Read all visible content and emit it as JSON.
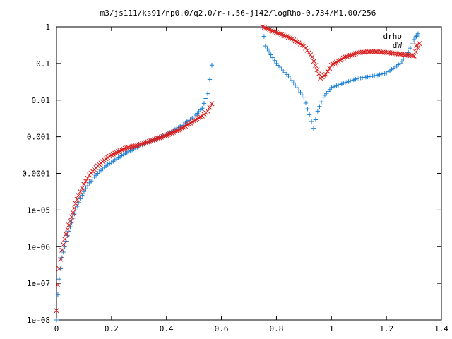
{
  "chart_data": {
    "type": "scatter",
    "title": "m3/js111/ks91/np0.0/q2.0/r-+.56-j142/logRho-0.734/M1.00/256",
    "xlim": [
      0,
      1.4
    ],
    "ylim": [
      1e-08,
      1
    ],
    "yscale": "log",
    "grid": false,
    "legend_position": "top-right",
    "x_ticks": [
      "0",
      "0.2",
      "0.4",
      "0.6",
      "0.8",
      "1",
      "1.2",
      "1.4"
    ],
    "x_tick_values": [
      0,
      0.2,
      0.4,
      0.6,
      0.8,
      1.0,
      1.2,
      1.4
    ],
    "y_ticks": [
      "1e-08",
      "1e-07",
      "1e-06",
      "1e-05",
      "0.0001",
      "0.001",
      "0.01",
      "0.1",
      "1"
    ],
    "y_tick_values": [
      1e-08,
      1e-07,
      1e-06,
      1e-05,
      0.0001,
      0.001,
      0.01,
      0.1,
      1
    ],
    "series": [
      {
        "name": "drho",
        "marker": "plus",
        "color": "#1a7fd4",
        "segments": [
          [
            [
              0.0,
              1e-08
            ],
            [
              0.005,
              5e-08
            ],
            [
              0.01,
              1.3e-07
            ],
            [
              0.015,
              2.5e-07
            ],
            [
              0.02,
              5e-07
            ],
            [
              0.03,
              1e-06
            ],
            [
              0.04,
              2e-06
            ],
            [
              0.05,
              3.5e-06
            ],
            [
              0.06,
              6e-06
            ],
            [
              0.07,
              1e-05
            ],
            [
              0.08,
              1.6e-05
            ],
            [
              0.1,
              3.2e-05
            ],
            [
              0.12,
              5.5e-05
            ],
            [
              0.15,
              0.0001
            ],
            [
              0.18,
              0.00016
            ],
            [
              0.2,
              0.0002
            ],
            [
              0.25,
              0.00035
            ],
            [
              0.3,
              0.00055
            ],
            [
              0.35,
              0.0008
            ],
            [
              0.4,
              0.00115
            ],
            [
              0.45,
              0.0019
            ],
            [
              0.5,
              0.0035
            ],
            [
              0.53,
              0.006
            ],
            [
              0.55,
              0.015
            ],
            [
              0.565,
              0.09
            ]
          ],
          [
            [
              0.75,
              1.0
            ],
            [
              0.76,
              0.3
            ],
            [
              0.8,
              0.1
            ],
            [
              0.85,
              0.04
            ],
            [
              0.9,
              0.012
            ],
            [
              0.92,
              0.004
            ],
            [
              0.935,
              0.0017
            ],
            [
              0.95,
              0.005
            ],
            [
              0.97,
              0.012
            ],
            [
              1.0,
              0.022
            ],
            [
              1.05,
              0.03
            ],
            [
              1.1,
              0.04
            ],
            [
              1.15,
              0.045
            ],
            [
              1.2,
              0.055
            ],
            [
              1.25,
              0.1
            ],
            [
              1.28,
              0.2
            ],
            [
              1.3,
              0.45
            ],
            [
              1.315,
              0.65
            ]
          ]
        ]
      },
      {
        "name": "dW",
        "marker": "cross",
        "color": "#d81b1b",
        "segments": [
          [
            [
              0.0,
              1.8e-08
            ],
            [
              0.005,
              9e-08
            ],
            [
              0.01,
              2.5e-07
            ],
            [
              0.015,
              4.5e-07
            ],
            [
              0.02,
              8e-07
            ],
            [
              0.03,
              1.6e-06
            ],
            [
              0.04,
              3e-06
            ],
            [
              0.05,
              5e-06
            ],
            [
              0.06,
              8.5e-06
            ],
            [
              0.07,
              1.5e-05
            ],
            [
              0.08,
              2.5e-05
            ],
            [
              0.1,
              5e-05
            ],
            [
              0.12,
              9e-05
            ],
            [
              0.15,
              0.00016
            ],
            [
              0.18,
              0.00025
            ],
            [
              0.2,
              0.00032
            ],
            [
              0.25,
              0.00048
            ],
            [
              0.3,
              0.0006
            ],
            [
              0.35,
              0.0008
            ],
            [
              0.4,
              0.0011
            ],
            [
              0.45,
              0.0016
            ],
            [
              0.5,
              0.0027
            ],
            [
              0.53,
              0.0037
            ],
            [
              0.55,
              0.005
            ],
            [
              0.565,
              0.008
            ]
          ],
          [
            [
              0.75,
              1.0
            ],
            [
              0.8,
              0.7
            ],
            [
              0.85,
              0.5
            ],
            [
              0.9,
              0.3
            ],
            [
              0.93,
              0.15
            ],
            [
              0.96,
              0.04
            ],
            [
              0.98,
              0.05
            ],
            [
              1.0,
              0.09
            ],
            [
              1.05,
              0.15
            ],
            [
              1.1,
              0.2
            ],
            [
              1.15,
              0.21
            ],
            [
              1.2,
              0.2
            ],
            [
              1.25,
              0.18
            ],
            [
              1.3,
              0.16
            ],
            [
              1.32,
              0.35
            ]
          ]
        ]
      }
    ]
  }
}
